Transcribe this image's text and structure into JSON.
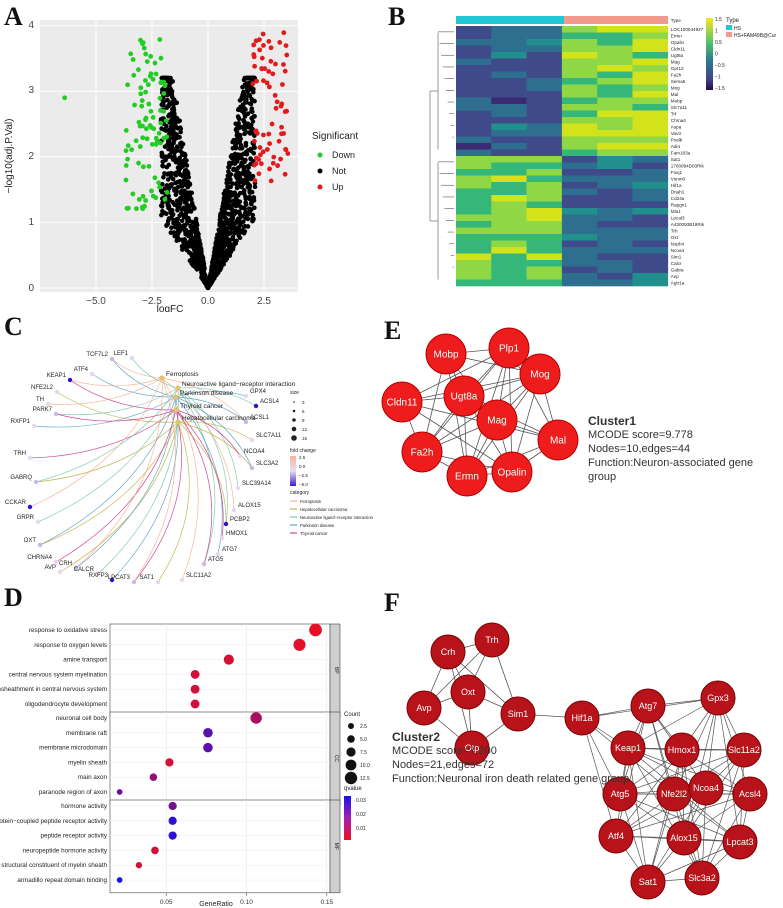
{
  "panels": {
    "A": "A",
    "B": "B",
    "C": "C",
    "D": "D",
    "E": "E",
    "F": "F"
  },
  "volcano": {
    "xlabel": "logFC",
    "ylabel": "−log10(adj.P.Val)",
    "xticks": [
      "−5.0",
      "−2.5",
      "0.0",
      "2.5"
    ],
    "yticks": [
      "0",
      "1",
      "2",
      "3",
      "4"
    ],
    "legend_title": "Significant",
    "legend": [
      {
        "label": "Down",
        "color": "#22cc22"
      },
      {
        "label": "Not",
        "color": "#000000"
      },
      {
        "label": "Up",
        "color": "#e31a1c"
      }
    ]
  },
  "heatmap": {
    "annotation_label": "Type",
    "legend_title": "Type",
    "groups": [
      {
        "label": "HS",
        "color": "#22c7d6"
      },
      {
        "label": "HS+FAM49B@Cur",
        "color": "#f29a8c"
      }
    ],
    "scale_ticks": [
      "1.5",
      "1",
      "0.5",
      "0",
      "−0.5",
      "−1",
      "−1.5"
    ],
    "genes": [
      "Type",
      "LOC100044927",
      "Ermn",
      "Opalin",
      "Cldn11",
      "Ugt8a",
      "Mag",
      "Gpr12",
      "Fa2h",
      "Sema6",
      "Mog",
      "Mal",
      "Mobp",
      "Slc7a11",
      "Trf",
      "Chrna4",
      "Aspa",
      "Vav3",
      "Pvalb",
      "Adi4",
      "Fam183a",
      "Sat1",
      "1700094D03Rik",
      "Foxj1",
      "Vsnm0",
      "Hif1a",
      "Dnah1",
      "Cd24a",
      "Rapgn1",
      "Mla1",
      "Lpcat3",
      "A430093B19Rik",
      "Trh",
      "Oxt",
      "Nxph4",
      "Ncoa4",
      "Sim1",
      "Calcr",
      "Gabra",
      "Avp",
      "Agtr1a"
    ]
  },
  "cnet": {
    "genes": [
      {
        "label": "TCF7L2"
      },
      {
        "label": "LEF1"
      },
      {
        "label": "ATF4"
      },
      {
        "label": "KEAP1"
      },
      {
        "label": "NFE2L2"
      },
      {
        "label": "TH"
      },
      {
        "label": "PARK7"
      },
      {
        "label": "RXFP1"
      },
      {
        "label": "TRH"
      },
      {
        "label": "GABRQ"
      },
      {
        "label": "CCKAR"
      },
      {
        "label": "GRPR"
      },
      {
        "label": "OXT"
      },
      {
        "label": "CHRNA4"
      },
      {
        "label": "AVP"
      },
      {
        "label": "CRH"
      },
      {
        "label": "CALCR"
      },
      {
        "label": "RXFP3"
      },
      {
        "label": "LPCAT3"
      },
      {
        "label": "SAT1"
      },
      {
        "label": "SLC11A2"
      },
      {
        "label": "ATG5"
      },
      {
        "label": "ATG7"
      },
      {
        "label": "HMOX1"
      },
      {
        "label": "PCBP2"
      },
      {
        "label": "ALOX15"
      },
      {
        "label": "SLC39A14"
      },
      {
        "label": "SLC3A2"
      },
      {
        "label": "NCOA4"
      },
      {
        "label": "SLC7A11"
      },
      {
        "label": "ACSL1"
      },
      {
        "label": "ACSL4"
      },
      {
        "label": "GPX4"
      }
    ],
    "categories": [
      {
        "label": "Ferroptosis",
        "color": "#f4a582"
      },
      {
        "label": "Neuroactive ligand−receptor interaction",
        "color": "#66c2a5"
      },
      {
        "label": "Parkinson disease",
        "color": "#4393c3"
      },
      {
        "label": "Thyroid cancer",
        "color": "#c51b7d"
      },
      {
        "label": "Hepatocellular carcinoma",
        "color": "#b8a226"
      }
    ],
    "size_title": "size",
    "size_ticks": [
      "3",
      "6",
      "9",
      "12",
      "15"
    ],
    "fc_title": "fold change",
    "fc_ticks": [
      "2.5",
      "0.0",
      "−2.5",
      "−5.0"
    ],
    "category_title": "category",
    "category_legend": [
      "Ferroptosis",
      "Hepatocellular carcinoma",
      "Neuroactive ligand−receptor interaction",
      "Parkinson disease",
      "Thyroid cancer"
    ]
  },
  "chart_data": {
    "type": "scatter",
    "title": "",
    "xlabel": "GeneRatio",
    "ylabel": "",
    "xlim": [
      0.015,
      0.152
    ],
    "xticks": [
      "0.05",
      "0.10",
      "0.15"
    ],
    "size_title": "Count",
    "size_ticks": [
      "2.5",
      "5.0",
      "7.5",
      "10.0",
      "12.5"
    ],
    "color_title": "qvalue",
    "color_ticks": [
      "0.03",
      "0.02",
      "0.01"
    ],
    "facets": [
      {
        "name": "BP",
        "terms": [
          {
            "term": "response to oxidative stress",
            "x": 0.143,
            "count": 13,
            "q": 0.001
          },
          {
            "term": "response to oxygen levels",
            "x": 0.133,
            "count": 12,
            "q": 0.002
          },
          {
            "term": "amine transport",
            "x": 0.089,
            "count": 9,
            "q": 0.004
          },
          {
            "term": "central nervous system myelination",
            "x": 0.068,
            "count": 7,
            "q": 0.005
          },
          {
            "term": "axon ensheathment in central nervous system",
            "x": 0.068,
            "count": 7,
            "q": 0.005
          },
          {
            "term": "oligodendrocyte development",
            "x": 0.068,
            "count": 7,
            "q": 0.005
          }
        ]
      },
      {
        "name": "CC",
        "terms": [
          {
            "term": "neuronal cell body",
            "x": 0.106,
            "count": 11,
            "q": 0.012
          },
          {
            "term": "membrane raft",
            "x": 0.076,
            "count": 8,
            "q": 0.025
          },
          {
            "term": "membrane microdomain",
            "x": 0.076,
            "count": 8,
            "q": 0.025
          },
          {
            "term": "myelin sheath",
            "x": 0.052,
            "count": 6,
            "q": 0.004
          },
          {
            "term": "main axon",
            "x": 0.042,
            "count": 5,
            "q": 0.015
          },
          {
            "term": "paranode region of axon",
            "x": 0.021,
            "count": 2,
            "q": 0.022
          }
        ]
      },
      {
        "name": "MF",
        "terms": [
          {
            "term": "hormone activity",
            "x": 0.054,
            "count": 6,
            "q": 0.02
          },
          {
            "term": "G protein−coupled peptide receptor activity",
            "x": 0.054,
            "count": 6,
            "q": 0.033
          },
          {
            "term": "peptide receptor activity",
            "x": 0.054,
            "count": 6,
            "q": 0.033
          },
          {
            "term": "neuropeptide hormone activity",
            "x": 0.043,
            "count": 5,
            "q": 0.005
          },
          {
            "term": "structural constituent of myelin sheath",
            "x": 0.033,
            "count": 3,
            "q": 0.004
          },
          {
            "term": "armadillo repeat domain binding",
            "x": 0.021,
            "count": 2,
            "q": 0.036
          }
        ]
      }
    ]
  },
  "cluster1": {
    "title": "Cluster1",
    "score": "MCODE score=9.778",
    "nodes": "Nodes=10,edges=44",
    "function": "Function:Neuron-associated gene group",
    "genes": [
      "Mobp",
      "Plp1",
      "Mog",
      "Cldn11",
      "Ugt8a",
      "Mag",
      "Mal",
      "Fa2h",
      "Ermn",
      "Opalin"
    ]
  },
  "cluster2": {
    "title": "Cluster2",
    "score": "MCODE score=7.200",
    "nodes": "Nodes=21,edges=72",
    "function": "Function:Neuronal iron death related gene group",
    "genes": [
      "Crh",
      "Trh",
      "Oxt",
      "Avp",
      "Sim1",
      "Otp",
      "Hif1a",
      "Atg7",
      "Gpx3",
      "Keap1",
      "Hmox1",
      "Slc11a2",
      "Atg5",
      "Nfe2l2",
      "Ncoa4",
      "Acsl4",
      "Atf4",
      "Alox15",
      "Lpcat3",
      "Sat1",
      "Slc3a2"
    ]
  }
}
